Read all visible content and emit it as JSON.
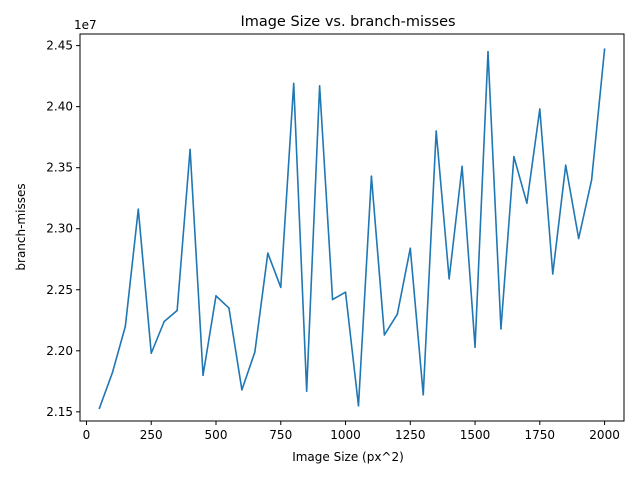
{
  "chart_data": {
    "type": "line",
    "title": "Image Size vs. branch-misses",
    "xlabel": "Image Size (px^2)",
    "ylabel": "branch-misses",
    "y_offset_label": "1e7",
    "xlim": [
      -25,
      2075
    ],
    "ylim": [
      2.1425,
      2.4595
    ],
    "x_ticks": [
      0,
      250,
      500,
      750,
      1000,
      1250,
      1500,
      1750,
      2000
    ],
    "x_tick_labels": [
      "0",
      "250",
      "500",
      "750",
      "1000",
      "1250",
      "1500",
      "1750",
      "2000"
    ],
    "y_ticks": [
      2.15,
      2.2,
      2.25,
      2.3,
      2.35,
      2.4,
      2.45
    ],
    "y_tick_labels": [
      "2.15",
      "2.20",
      "2.25",
      "2.30",
      "2.35",
      "2.40",
      "2.45"
    ],
    "grid": false,
    "colors": {
      "line": "#1f77b4"
    },
    "series": [
      {
        "x": [
          50,
          100,
          150,
          200,
          250,
          300,
          350,
          400,
          450,
          500,
          550,
          600,
          650,
          700,
          750,
          800,
          850,
          900,
          950,
          1000,
          1050,
          1100,
          1150,
          1200,
          1250,
          1300,
          1350,
          1400,
          1450,
          1500,
          1550,
          1600,
          1650,
          1700,
          1750,
          1800,
          1850,
          1900,
          1950,
          2000
        ],
        "values": [
          2.153,
          2.182,
          2.22,
          2.316,
          2.198,
          2.224,
          2.233,
          2.365,
          2.18,
          2.245,
          2.235,
          2.168,
          2.199,
          2.28,
          2.252,
          2.419,
          2.167,
          2.417,
          2.242,
          2.248,
          2.155,
          2.343,
          2.213,
          2.23,
          2.284,
          2.164,
          2.38,
          2.259,
          2.351,
          2.203,
          2.445,
          2.218,
          2.359,
          2.321,
          2.398,
          2.263,
          2.352,
          2.292,
          2.34,
          2.447
        ]
      }
    ]
  }
}
